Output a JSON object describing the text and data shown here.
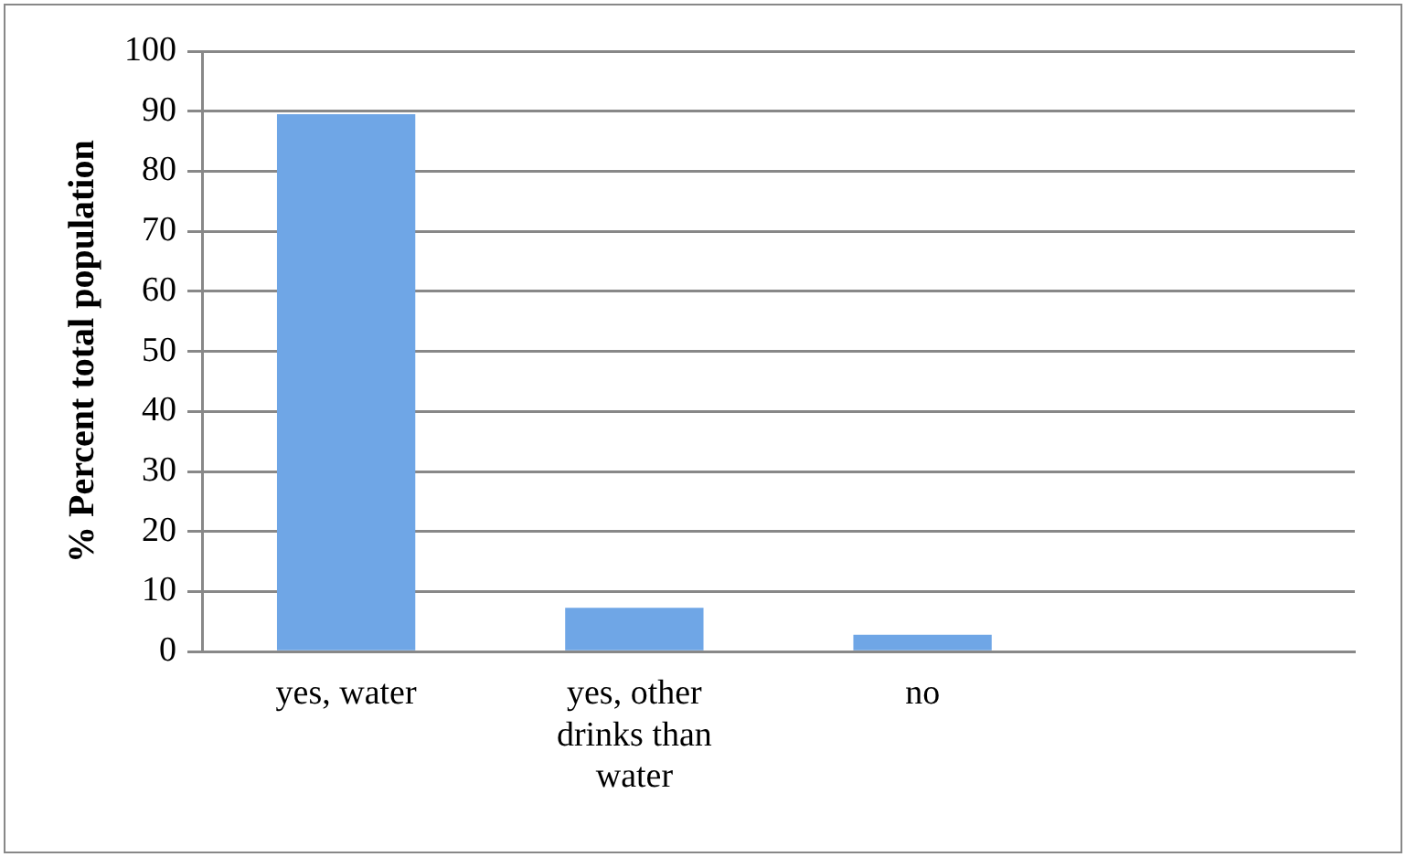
{
  "chart_data": {
    "type": "bar",
    "ylabel": "% Percent total population",
    "categories": [
      "yes, water",
      "yes, other drinks than water",
      "no",
      null
    ],
    "values": [
      89.5,
      7.3,
      2.8,
      null
    ],
    "color": "#6fa6e6",
    "ylim": [
      0,
      100
    ],
    "yticks": [
      0,
      10,
      20,
      30,
      40,
      50,
      60,
      70,
      80,
      90,
      100
    ],
    "grid": "y",
    "legend": false
  }
}
